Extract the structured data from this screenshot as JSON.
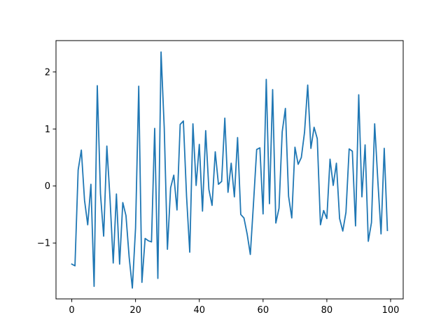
{
  "chart_data": {
    "type": "line",
    "title": "",
    "xlabel": "",
    "ylabel": "",
    "xlim": [
      -4.95,
      103.95
    ],
    "ylim": [
      -1.98,
      2.55
    ],
    "x_ticks": [
      0,
      20,
      40,
      60,
      80,
      100
    ],
    "x_tick_labels": [
      "0",
      "20",
      "40",
      "60",
      "80",
      "100"
    ],
    "y_ticks": [
      -1,
      0,
      1,
      2
    ],
    "y_tick_labels": [
      "−1",
      "0",
      "1",
      "2"
    ],
    "grid": false,
    "legend": "none",
    "series": [
      {
        "color": "#1f77b4",
        "x": [
          0,
          1,
          2,
          3,
          4,
          5,
          6,
          7,
          8,
          9,
          10,
          11,
          12,
          13,
          14,
          15,
          16,
          17,
          18,
          19,
          20,
          21,
          22,
          23,
          24,
          25,
          26,
          27,
          28,
          29,
          30,
          31,
          32,
          33,
          34,
          35,
          36,
          37,
          38,
          39,
          40,
          41,
          42,
          43,
          44,
          45,
          46,
          47,
          48,
          49,
          50,
          51,
          52,
          53,
          54,
          55,
          56,
          57,
          58,
          59,
          60,
          61,
          62,
          63,
          64,
          65,
          66,
          67,
          68,
          69,
          70,
          71,
          72,
          73,
          74,
          75,
          76,
          77,
          78,
          79,
          80,
          81,
          82,
          83,
          84,
          85,
          86,
          87,
          88,
          89,
          90,
          91,
          92,
          93,
          94,
          95,
          96,
          97,
          98,
          99
        ],
        "values": [
          -1.37,
          -1.4,
          0.28,
          0.63,
          -0.25,
          -0.68,
          0.03,
          -1.76,
          1.76,
          -0.14,
          -0.88,
          0.7,
          -0.23,
          -1.35,
          -0.14,
          -1.37,
          -0.29,
          -0.52,
          -1.25,
          -1.79,
          -0.74,
          1.75,
          -1.69,
          -0.92,
          -0.96,
          -0.98,
          1.01,
          -1.62,
          2.35,
          1.02,
          -1.11,
          -0.03,
          0.19,
          -0.42,
          1.08,
          1.14,
          -0.18,
          -1.16,
          1.09,
          0.01,
          0.73,
          -0.44,
          0.97,
          -0.06,
          -0.34,
          0.6,
          0.03,
          0.08,
          1.19,
          -0.11,
          0.4,
          -0.19,
          0.85,
          -0.5,
          -0.56,
          -0.84,
          -1.2,
          -0.3,
          0.64,
          0.67,
          -0.49,
          1.87,
          -0.31,
          1.69,
          -0.65,
          -0.39,
          0.95,
          1.36,
          -0.18,
          -0.56,
          0.68,
          0.38,
          0.5,
          0.94,
          1.77,
          0.66,
          1.03,
          0.83,
          -0.68,
          -0.43,
          -0.57,
          0.47,
          0.01,
          0.4,
          -0.57,
          -0.79,
          -0.46,
          0.65,
          0.61,
          -0.7,
          1.6,
          -0.19,
          0.72,
          -0.97,
          -0.64,
          1.09,
          0.09,
          -0.84,
          0.66,
          -0.78
        ]
      }
    ]
  }
}
